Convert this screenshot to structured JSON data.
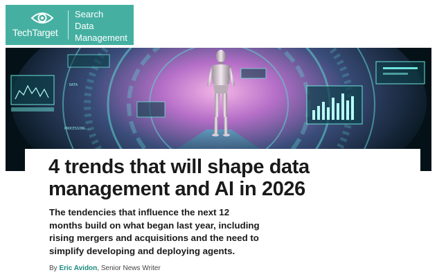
{
  "site": {
    "brand": "TechTarget",
    "section_line1": "Search",
    "section_line2": "Data",
    "section_line3": "Management",
    "brand_color": "#45b0a2"
  },
  "article": {
    "headline": "4 trends that will shape data management and AI in 2026",
    "dek": "The tendencies that influence the next 12 months build on what began last year, including rising mergers and acquisitions and the need to simplify developing and deploying agents.",
    "byline_prefix": "By",
    "author": "Eric Avidon",
    "author_role": ", Senior News Writer",
    "author_color": "#1b8a7c"
  },
  "hero": {
    "hud_label_1": "PROCESSING...",
    "hud_label_2": "DATA"
  }
}
